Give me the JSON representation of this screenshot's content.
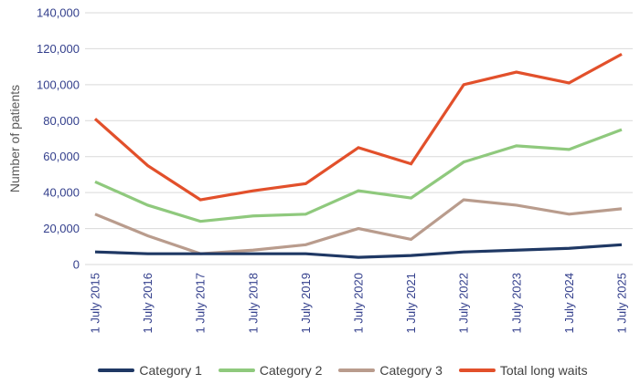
{
  "chart": {
    "colors": {
      "background": "#FFFFFF",
      "axis_label": "#333F8C",
      "axis_title": "#595959",
      "gridline": "#D9D9D9",
      "legend_text": "#404040"
    }
  },
  "chart_data": {
    "type": "line",
    "title": "",
    "x": [
      "1 July 2015",
      "1 July 2016",
      "1 July 2017",
      "1 July 2018",
      "1 July 2019",
      "1 July 2020",
      "1 July 2021",
      "1 July 2022",
      "1 July 2023",
      "1 July 2024",
      "1 July 2025"
    ],
    "series": [
      {
        "name": "Category 1",
        "color": "#1F3864",
        "values": [
          7000,
          6000,
          6000,
          6000,
          6000,
          4000,
          5000,
          7000,
          8000,
          9000,
          11000
        ]
      },
      {
        "name": "Category 2",
        "color": "#8FC97D",
        "values": [
          46000,
          33000,
          24000,
          27000,
          28000,
          41000,
          37000,
          57000,
          66000,
          64000,
          75000
        ]
      },
      {
        "name": "Category 3",
        "color": "#B99C8D",
        "values": [
          28000,
          16000,
          6000,
          8000,
          11000,
          20000,
          14000,
          36000,
          33000,
          28000,
          31000
        ]
      },
      {
        "name": "Total long waits",
        "color": "#E2502B",
        "values": [
          81000,
          55000,
          36000,
          41000,
          45000,
          65000,
          56000,
          100000,
          107000,
          101000,
          117000
        ]
      }
    ],
    "xlabel": "",
    "ylabel": "Number of patients",
    "ylim": [
      0,
      140000
    ],
    "ytick_step": 20000,
    "ytick_labels": [
      "0",
      "20,000",
      "40,000",
      "60,000",
      "80,000",
      "100,000",
      "120,000",
      "140,000"
    ],
    "grid": "horizontal",
    "legend_position": "bottom"
  }
}
